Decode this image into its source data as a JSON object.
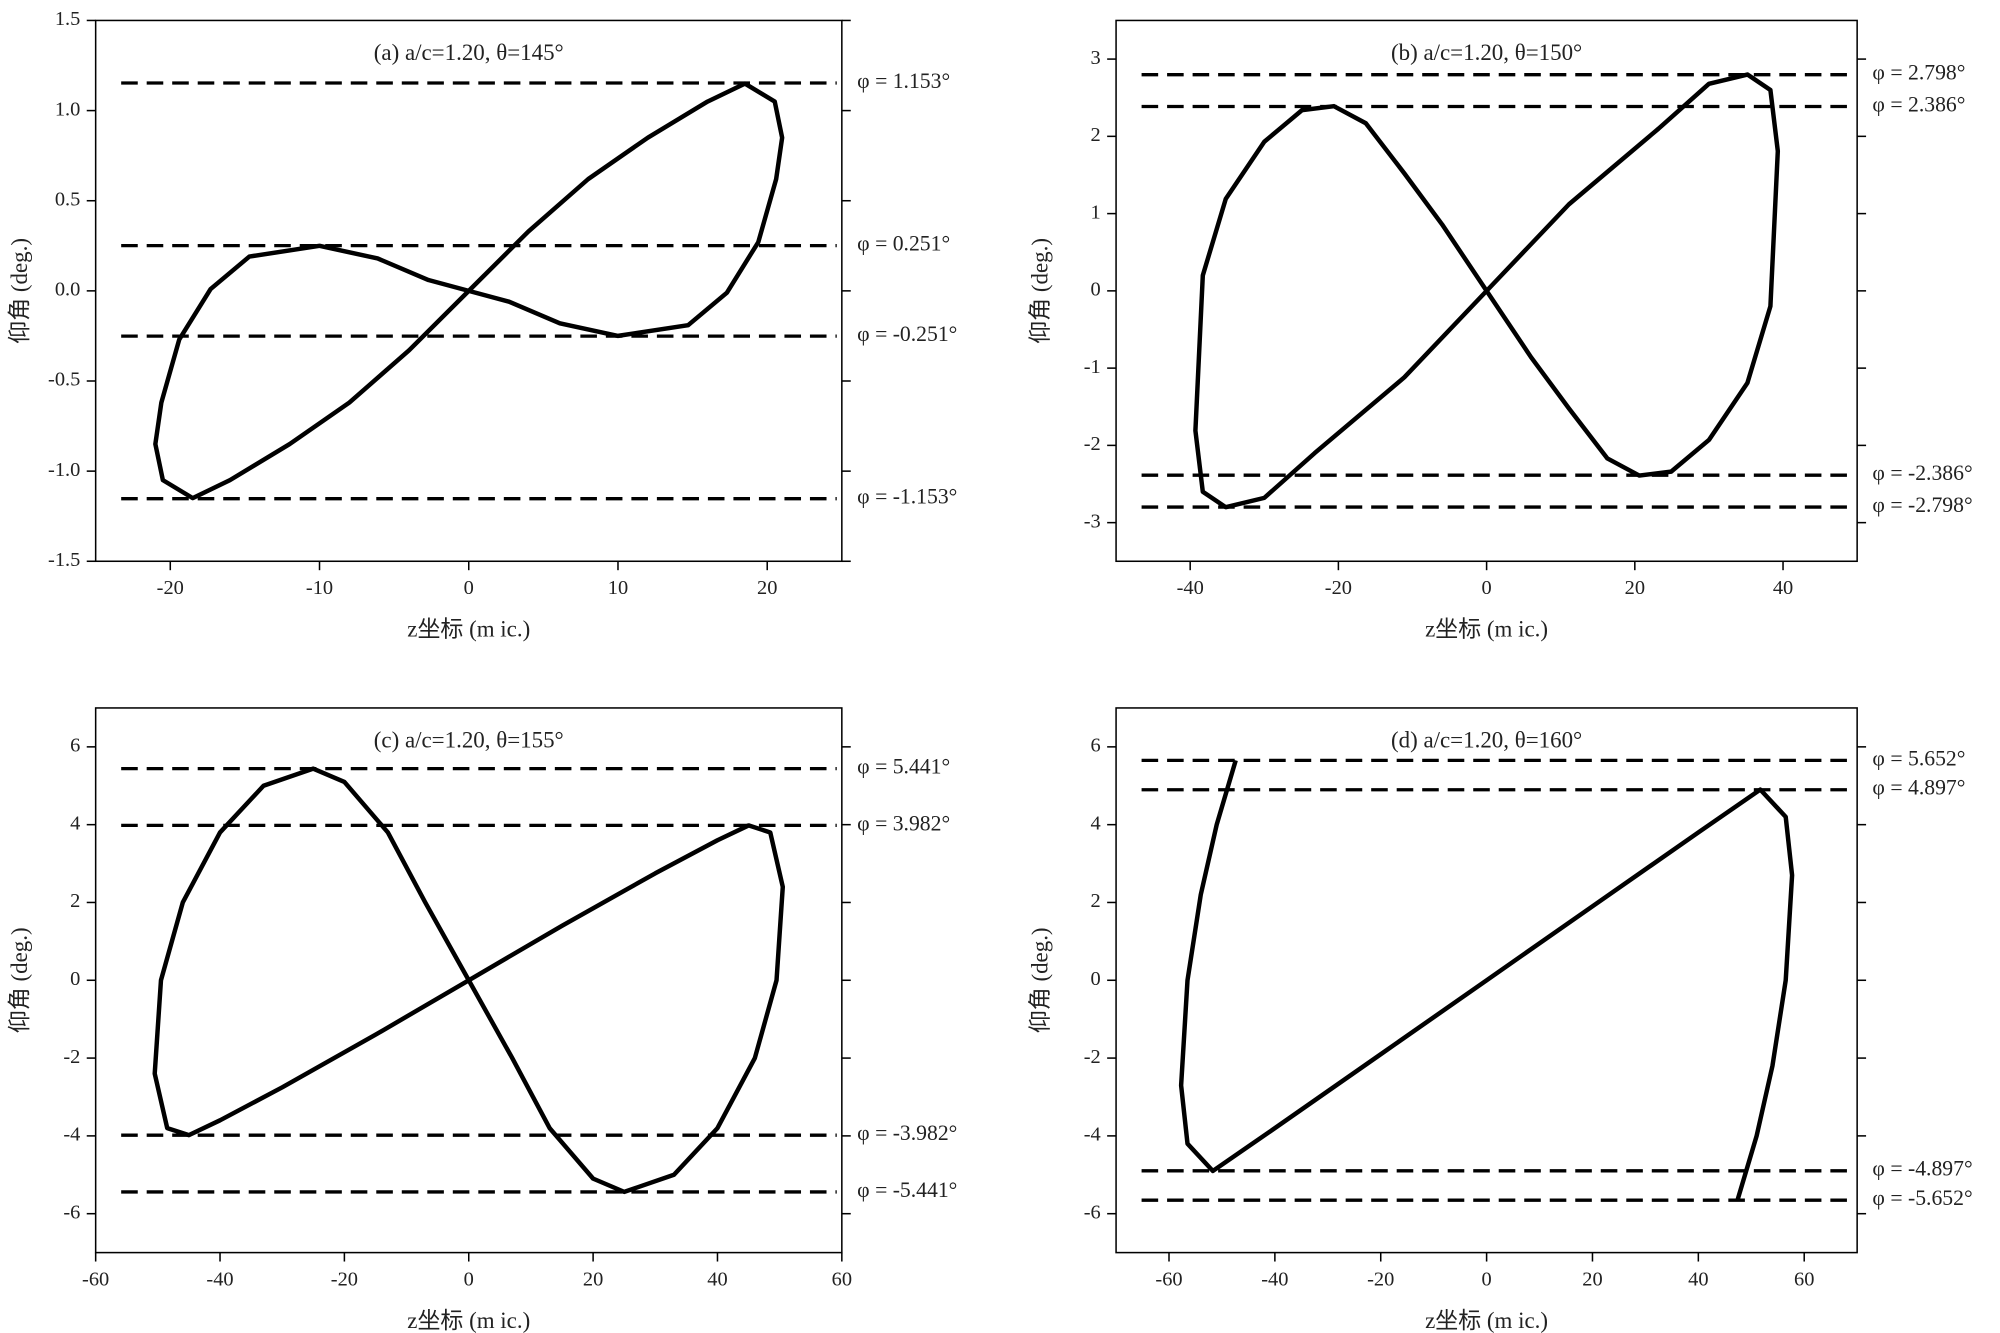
{
  "chart_data": [
    {
      "type": "line",
      "title": "(a) a/c=1.20, θ=145°",
      "xlabel": "z坐标 (m ic.)",
      "ylabel": "仰角 (deg.)",
      "xlim": [
        -25,
        25
      ],
      "xticks": [
        -20,
        -10,
        0,
        10,
        20
      ],
      "ylim": [
        -1.5,
        1.5
      ],
      "yticks": [
        -1.5,
        {
          "value": -1,
          "label": "-1.0"
        },
        -0.5,
        {
          "value": 0,
          "label": "0.0"
        },
        0.5,
        {
          "value": 1,
          "label": "1.0"
        },
        1.5
      ],
      "color": "#000000",
      "x": [
        0,
        4,
        8,
        12,
        16,
        18.5,
        20.5,
        21,
        20.6,
        19.4,
        17.3,
        14.7,
        10,
        6.1,
        2.7,
        0,
        -2.7,
        -6.1,
        -10,
        -14.7,
        -17.3,
        -19.4,
        -20.6,
        -21,
        -20.5,
        -18.5,
        -16,
        -12,
        -8,
        -4,
        0
      ],
      "values": [
        0,
        0.33,
        0.62,
        0.85,
        1.05,
        1.15,
        1.05,
        0.85,
        0.62,
        0.27,
        -0.01,
        -0.19,
        -0.25,
        -0.18,
        -0.06,
        0,
        0.06,
        0.18,
        0.25,
        0.19,
        0.01,
        -0.27,
        -0.62,
        -0.85,
        -1.05,
        -1.15,
        -1.05,
        -0.85,
        -0.62,
        -0.33,
        0
      ],
      "reference_lines": [
        {
          "value": 1.153,
          "label": "φ = 1.153°"
        },
        {
          "value": 0.251,
          "label": "φ = 0.251°"
        },
        {
          "value": -0.251,
          "label": "φ = -0.251°"
        },
        {
          "value": -1.153,
          "label": "φ = -1.153°"
        }
      ]
    },
    {
      "type": "line",
      "title": "(b) a/c=1.20, θ=150°",
      "xlabel": "z坐标 (m ic.)",
      "ylabel": "仰角 (deg.)",
      "xlim": [
        -50,
        50
      ],
      "xticks": [
        -40,
        -20,
        0,
        20,
        40
      ],
      "ylim": [
        -3.5,
        3.5
      ],
      "yticks": [
        -3,
        -2,
        -1,
        0,
        1,
        2,
        3
      ],
      "color": "#000000",
      "x": [
        0,
        11.1,
        23.2,
        30,
        35.2,
        38.3,
        39.3,
        38.3,
        35.2,
        30,
        24.9,
        20.6,
        16.3,
        11.1,
        6,
        0,
        -6,
        -11.1,
        -16.3,
        -20.6,
        -24.9,
        -30,
        -35.2,
        -38.3,
        -39.3,
        -38.3,
        -35.2,
        -30,
        -23.2,
        -11.1,
        0
      ],
      "values": [
        0,
        1.12,
        2.1,
        2.68,
        2.8,
        2.6,
        1.81,
        -0.2,
        -1.19,
        -1.93,
        -2.34,
        -2.39,
        -2.17,
        -1.52,
        -0.86,
        0,
        0.86,
        1.52,
        2.17,
        2.39,
        2.34,
        1.93,
        1.19,
        0.2,
        -1.81,
        -2.6,
        -2.8,
        -2.68,
        -2.1,
        -1.12,
        0
      ],
      "reference_lines": [
        {
          "value": 2.798,
          "label": "φ = 2.798°"
        },
        {
          "value": 2.386,
          "label": "φ = 2.386°"
        },
        {
          "value": -2.386,
          "label": "φ = -2.386°"
        },
        {
          "value": -2.798,
          "label": "φ = -2.798°"
        }
      ]
    },
    {
      "type": "line",
      "title": "(c) a/c=1.20, θ=155°",
      "xlabel": "z坐标 (m ic.)",
      "ylabel": "仰角 (deg.)",
      "xlim": [
        -60,
        60
      ],
      "xticks": [
        -60,
        -40,
        -20,
        0,
        20,
        40,
        60
      ],
      "ylim": [
        -7,
        7
      ],
      "yticks": [
        -6,
        -4,
        -2,
        0,
        2,
        4,
        6
      ],
      "color": "#000000",
      "x": [
        0,
        15,
        30,
        40,
        45,
        48.5,
        50.5,
        49.5,
        46,
        40,
        33,
        25,
        20,
        13,
        7,
        0,
        -7,
        -13,
        -20,
        -25,
        -33,
        -40,
        -46,
        -49.5,
        -50.5,
        -48.5,
        -45,
        -40,
        -30,
        -15,
        0
      ],
      "values": [
        0,
        1.4,
        2.75,
        3.6,
        3.98,
        3.8,
        2.4,
        0,
        -2,
        -3.8,
        -5,
        -5.44,
        -5.1,
        -3.8,
        -2,
        0,
        2,
        3.8,
        5.1,
        5.44,
        5,
        3.8,
        2,
        0,
        -2.4,
        -3.8,
        -3.98,
        -3.6,
        -2.75,
        -1.4,
        0
      ],
      "reference_lines": [
        {
          "value": 5.441,
          "label": "φ = 5.441°"
        },
        {
          "value": 3.982,
          "label": "φ = 3.982°"
        },
        {
          "value": -3.982,
          "label": "φ = -3.982°"
        },
        {
          "value": -5.441,
          "label": "φ = -5.441°"
        }
      ]
    },
    {
      "type": "line",
      "title": "(d) a/c=1.20, θ=160°",
      "xlabel": "z坐标 (m ic.)",
      "ylabel": "仰角 (deg.)",
      "xlim": [
        -70,
        70
      ],
      "xticks": [
        -60,
        -40,
        -20,
        0,
        20,
        40,
        60
      ],
      "ylim": [
        -7,
        7
      ],
      "yticks": [
        -6,
        -4,
        -2,
        0,
        2,
        4,
        6
      ],
      "color": "#000000",
      "x": [
        -47.4,
        -51,
        -54,
        -56.5,
        -57.7,
        -56.5,
        -51.7,
        -40,
        -20,
        0,
        20,
        40,
        51.7,
        56.5,
        57.7,
        56.5,
        54,
        51,
        47.4
      ],
      "values": [
        5.652,
        4,
        2.2,
        0,
        -2.7,
        -4.2,
        -4.9,
        -3.8,
        -1.9,
        0,
        1.9,
        3.8,
        4.9,
        4.2,
        2.7,
        0,
        -2.2,
        -4,
        -5.652
      ],
      "reference_lines": [
        {
          "value": 5.652,
          "label": "φ = 5.652°"
        },
        {
          "value": 4.897,
          "label": "φ = 4.897°"
        },
        {
          "value": -4.897,
          "label": "φ = -4.897°"
        },
        {
          "value": -5.652,
          "label": "φ = -5.652°"
        }
      ]
    }
  ]
}
